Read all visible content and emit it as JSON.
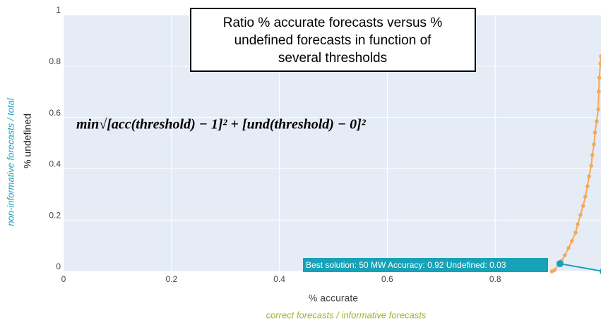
{
  "chart_data": {
    "type": "line",
    "title_lines": [
      "Ratio % accurate forecasts versus %",
      "undefined forecasts in function of",
      "several thresholds"
    ],
    "x_label": "% accurate",
    "x_sublabel": "correct forecasts / informative forecasts",
    "y_label": "% undefined",
    "y_sublabel": "non-informative forecasts / total",
    "formula": "min√[acc(threshold) − 1]² + [und(threshold) − 0]²",
    "best_label": "Best solution: 50 MW   Accuracy: 0.92   Undefined: 0.03",
    "xlim": [
      0,
      1
    ],
    "ylim": [
      0,
      1
    ],
    "xticks": [
      0,
      0.2,
      0.4,
      0.6,
      0.8
    ],
    "yticks": [
      0,
      0.2,
      0.4,
      0.6,
      0.8,
      1
    ],
    "grid": true,
    "series": [
      {
        "color": "#f5a957",
        "x": [
          0.905,
          0.91,
          0.923,
          0.929,
          0.936,
          0.942,
          0.949,
          0.953,
          0.958,
          0.963,
          0.967,
          0.971,
          0.974,
          0.978,
          0.98,
          0.983,
          0.985,
          0.988,
          0.991,
          0.992,
          0.993,
          0.995,
          0.996
        ],
        "values": [
          0,
          0.005,
          0.041,
          0.063,
          0.091,
          0.118,
          0.151,
          0.184,
          0.22,
          0.255,
          0.291,
          0.332,
          0.371,
          0.412,
          0.453,
          0.495,
          0.541,
          0.585,
          0.632,
          0.701,
          0.755,
          0.81,
          0.838
        ]
      },
      {
        "color": "#17a2b8",
        "x": [
          0.92,
          1
        ],
        "values": [
          0.03,
          0
        ]
      }
    ]
  }
}
